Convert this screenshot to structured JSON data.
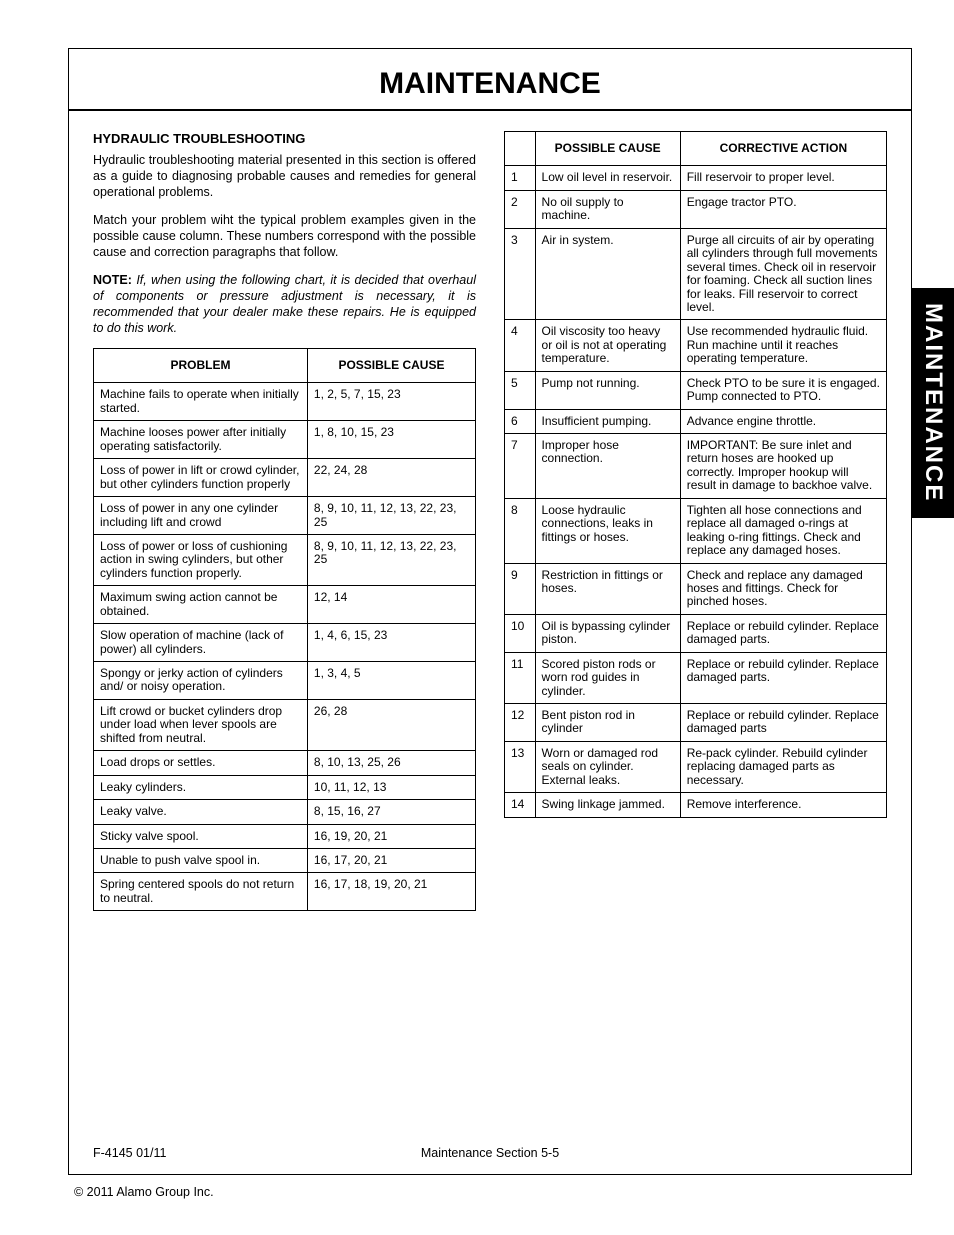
{
  "page": {
    "title": "MAINTENANCE",
    "side_tab": "MAINTENANCE",
    "section_heading": "HYDRAULIC TROUBLESHOOTING",
    "para1": "Hydraulic troubleshooting material presented in this section is offered as a guide to diagnosing probable causes and remedies for general operational problems.",
    "para2": "Match your problem wiht the typical problem examples given in the possible cause column. These numbers correspond with the possible cause and correction paragraphs that follow.",
    "note_label": "NOTE:",
    "note_body": "If, when using the following chart, it is decided that overhaul of components or pressure adjustment is necessary, it is recommended that your dealer make these repairs. He is equipped to do this work.",
    "footer_left": "F-4145  01/11",
    "footer_center": "Maintenance Section 5-5",
    "copyright": "© 2011 Alamo Group Inc."
  },
  "problem_table": {
    "headers": [
      "PROBLEM",
      "POSSIBLE CAUSE"
    ],
    "rows": [
      [
        "Machine fails to operate when initially started.",
        "1, 2, 5, 7, 15, 23"
      ],
      [
        "Machine looses power after initially operating satisfactorily.",
        "1, 8, 10, 15, 23"
      ],
      [
        "Loss of power in lift or crowd cylinder, but other cylinders function properly",
        "22, 24, 28"
      ],
      [
        "Loss of power in any one cylinder including lift and crowd",
        "8, 9, 10, 11, 12, 13, 22, 23, 25"
      ],
      [
        "Loss of power or loss of cushioning action in swing cylinders, but other cylinders function properly.",
        "8, 9, 10, 11, 12, 13, 22, 23, 25"
      ],
      [
        "Maximum swing action cannot be obtained.",
        "12, 14"
      ],
      [
        "Slow operation of machine (lack of power) all cylinders.",
        "1, 4, 6, 15, 23"
      ],
      [
        "Spongy or jerky action of cylinders and/ or noisy operation.",
        "1, 3, 4, 5"
      ],
      [
        "Lift crowd or bucket cylinders drop under load when lever spools are shifted from neutral.",
        "26, 28"
      ],
      [
        "Load drops or settles.",
        "8, 10, 13, 25, 26"
      ],
      [
        "Leaky cylinders.",
        "10, 11, 12, 13"
      ],
      [
        "Leaky valve.",
        "8, 15, 16, 27"
      ],
      [
        "Sticky valve spool.",
        "16, 19, 20, 21"
      ],
      [
        "Unable to push valve spool in.",
        "16, 17, 20, 21"
      ],
      [
        "Spring centered spools do not return to neutral.",
        "16, 17, 18, 19, 20, 21"
      ]
    ]
  },
  "cause_table": {
    "headers": [
      "",
      "POSSIBLE CAUSE",
      "CORRECTIVE ACTION"
    ],
    "rows": [
      [
        "1",
        "Low oil level in reservoir.",
        "Fill reservoir to proper level."
      ],
      [
        "2",
        "No oil supply to machine.",
        "Engage tractor PTO."
      ],
      [
        "3",
        "Air in system.",
        "Purge all circuits of air by operating all cylinders through full movements several times. Check oil in reservoir for foaming. Check all suction lines for leaks. Fill reservoir to correct level."
      ],
      [
        "4",
        "Oil viscosity too heavy or oil is not at operating temperature.",
        "Use recommended hydraulic fluid. Run machine until it reaches operating temperature."
      ],
      [
        "5",
        "Pump not running.",
        "Check PTO to be sure it is engaged. Pump connected to PTO."
      ],
      [
        "6",
        "Insufficient pumping.",
        "Advance engine throttle."
      ],
      [
        "7",
        "Improper hose connection.",
        "IMPORTANT: Be sure inlet and return hoses are hooked up correctly. Improper hookup will result in damage to backhoe valve."
      ],
      [
        "8",
        "Loose hydraulic connections, leaks in fittings or hoses.",
        "Tighten all hose connections and replace all damaged o-rings at leaking o-ring fittings. Check and replace any damaged hoses."
      ],
      [
        "9",
        "Restriction in fittings or hoses.",
        "Check and replace any damaged hoses and fittings. Check for pinched hoses."
      ],
      [
        "10",
        "Oil is bypassing cylinder piston.",
        "Replace or rebuild cylinder. Replace damaged parts."
      ],
      [
        "11",
        "Scored piston rods or worn rod guides in cylinder.",
        "Replace or rebuild cylinder. Replace damaged parts."
      ],
      [
        "12",
        "Bent piston rod in cylinder",
        "Replace or rebuild cylinder. Replace damaged parts"
      ],
      [
        "13",
        "Worn or damaged rod seals on cylinder. External leaks.",
        "Re-pack cylinder. Rebuild cylinder replacing damaged parts as necessary."
      ],
      [
        "14",
        "Swing linkage jammed.",
        "Remove interference."
      ]
    ]
  }
}
